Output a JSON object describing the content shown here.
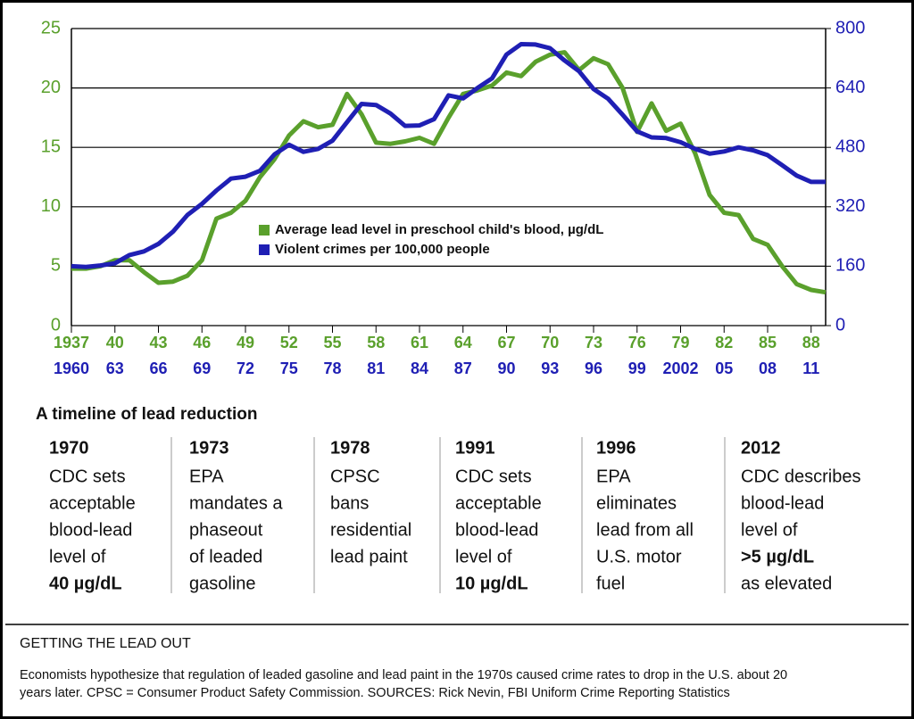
{
  "chart_data": {
    "type": "line",
    "xlim": [
      1937,
      1989
    ],
    "x2lim": [
      1960,
      2012
    ],
    "ylim": [
      0,
      25
    ],
    "y2lim": [
      0,
      800
    ],
    "yticks": [
      0,
      5,
      10,
      15,
      20,
      25
    ],
    "y2ticks": [
      0,
      160,
      320,
      480,
      640,
      800
    ],
    "xticks": [
      1937,
      {
        "value": 1940,
        "label": "40"
      },
      {
        "value": 1943,
        "label": "43"
      },
      {
        "value": 1946,
        "label": "46"
      },
      {
        "value": 1949,
        "label": "49"
      },
      {
        "value": 1952,
        "label": "52"
      },
      {
        "value": 1955,
        "label": "55"
      },
      {
        "value": 1958,
        "label": "58"
      },
      {
        "value": 1961,
        "label": "61"
      },
      {
        "value": 1964,
        "label": "64"
      },
      {
        "value": 1967,
        "label": "67"
      },
      {
        "value": 1970,
        "label": "70"
      },
      {
        "value": 1973,
        "label": "73"
      },
      {
        "value": 1976,
        "label": "76"
      },
      {
        "value": 1979,
        "label": "79"
      },
      {
        "value": 1982,
        "label": "82"
      },
      {
        "value": 1985,
        "label": "85"
      },
      {
        "value": 1988,
        "label": "88"
      }
    ],
    "x2ticks": [
      1960,
      {
        "value": 1963,
        "label": "63"
      },
      {
        "value": 1966,
        "label": "66"
      },
      {
        "value": 1969,
        "label": "69"
      },
      {
        "value": 1972,
        "label": "72"
      },
      {
        "value": 1975,
        "label": "75"
      },
      {
        "value": 1978,
        "label": "78"
      },
      {
        "value": 1981,
        "label": "81"
      },
      {
        "value": 1984,
        "label": "84"
      },
      {
        "value": 1987,
        "label": "87"
      },
      {
        "value": 1990,
        "label": "90"
      },
      {
        "value": 1993,
        "label": "93"
      },
      {
        "value": 1996,
        "label": "96"
      },
      {
        "value": 1999,
        "label": "99"
      },
      2002,
      {
        "value": 2005,
        "label": "05"
      },
      {
        "value": 2008,
        "label": "08"
      },
      {
        "value": 2011,
        "label": "11"
      }
    ],
    "grid": true,
    "legend": "center",
    "series": [
      {
        "name": "Average lead level in preschool child's blood, µg/dL",
        "color": "#5aa02c",
        "x": [
          1937,
          1938,
          1939,
          1940,
          1941,
          1942,
          1943,
          1944,
          1945,
          1946,
          1947,
          1948,
          1949,
          1950,
          1951,
          1952,
          1953,
          1954,
          1955,
          1956,
          1957,
          1958,
          1959,
          1960,
          1961,
          1962,
          1963,
          1964,
          1965,
          1966,
          1967,
          1968,
          1969,
          1970,
          1971,
          1972,
          1973,
          1974,
          1975,
          1976,
          1977,
          1978,
          1979,
          1980,
          1981,
          1982,
          1983,
          1984,
          1985,
          1986,
          1987,
          1988,
          1989
        ],
        "values": [
          4.8,
          4.8,
          5.0,
          5.5,
          5.5,
          4.5,
          3.6,
          3.7,
          4.2,
          5.5,
          9.0,
          9.5,
          10.5,
          12.5,
          14.0,
          16.0,
          17.2,
          16.7,
          16.9,
          19.5,
          17.8,
          15.4,
          15.3,
          15.5,
          15.8,
          15.3,
          17.5,
          19.5,
          19.8,
          20.2,
          21.3,
          21.0,
          22.2,
          22.8,
          23.0,
          21.5,
          22.5,
          22.0,
          20.0,
          16.3,
          18.7,
          16.4,
          17.0,
          14.5,
          11.0,
          9.5,
          9.3,
          7.3,
          6.8,
          5.0,
          3.5,
          3.0,
          2.8
        ]
      },
      {
        "name": "Violent crimes per 100,000 people",
        "color": "#1f1fb4",
        "axis": "y2",
        "xaxis": "x2",
        "x": [
          1960,
          1961,
          1962,
          1963,
          1964,
          1965,
          1966,
          1967,
          1968,
          1969,
          1970,
          1971,
          1972,
          1973,
          1974,
          1975,
          1976,
          1977,
          1978,
          1979,
          1980,
          1981,
          1982,
          1983,
          1984,
          1985,
          1986,
          1987,
          1988,
          1989,
          1990,
          1991,
          1992,
          1993,
          1994,
          1995,
          1996,
          1997,
          1998,
          1999,
          2000,
          2001,
          2002,
          2003,
          2004,
          2005,
          2006,
          2007,
          2008,
          2009,
          2010,
          2011,
          2012
        ],
        "values": [
          160,
          158,
          162,
          168,
          190,
          200,
          220,
          253,
          298,
          328,
          364,
          396,
          401,
          417,
          461,
          487,
          468,
          476,
          498,
          548,
          597,
          594,
          571,
          538,
          539,
          556,
          620,
          612,
          640,
          666,
          730,
          758,
          757,
          747,
          714,
          685,
          637,
          611,
          568,
          523,
          507,
          505,
          494,
          476,
          463,
          469,
          480,
          472,
          459,
          432,
          404,
          387,
          387
        ]
      }
    ]
  },
  "timeline": {
    "title": "A timeline of lead reduction",
    "events": [
      {
        "year": "1970",
        "lines": [
          "CDC sets",
          "acceptable",
          "blood-lead",
          "level of"
        ],
        "emphasis": "40 µg/dL"
      },
      {
        "year": "1973",
        "lines": [
          "EPA",
          "mandates a",
          "phaseout",
          "of leaded",
          "gasoline"
        ]
      },
      {
        "year": "1978",
        "lines": [
          "CPSC",
          "bans",
          "residential",
          "lead paint"
        ]
      },
      {
        "year": "1991",
        "lines": [
          "CDC sets",
          "acceptable",
          "blood-lead",
          "level of"
        ],
        "emphasis": "10 µg/dL"
      },
      {
        "year": "1996",
        "lines": [
          "EPA",
          "eliminates",
          "lead from all",
          "U.S. motor",
          "fuel"
        ]
      },
      {
        "year": "2012",
        "lines": [
          "CDC describes",
          "blood-lead",
          "level of"
        ],
        "emphasis": ">5 µg/dL",
        "after": [
          "as elevated"
        ]
      }
    ]
  },
  "caption": {
    "title": "GETTING THE LEAD OUT",
    "lines": [
      "Economists hypothesize that regulation of leaded gasoline and lead paint in the 1970s caused crime rates to drop in the U.S. about 20",
      "years later. CPSC = Consumer Product Safety Commission. SOURCES: Rick Nevin, FBI Uniform Crime Reporting Statistics"
    ]
  }
}
